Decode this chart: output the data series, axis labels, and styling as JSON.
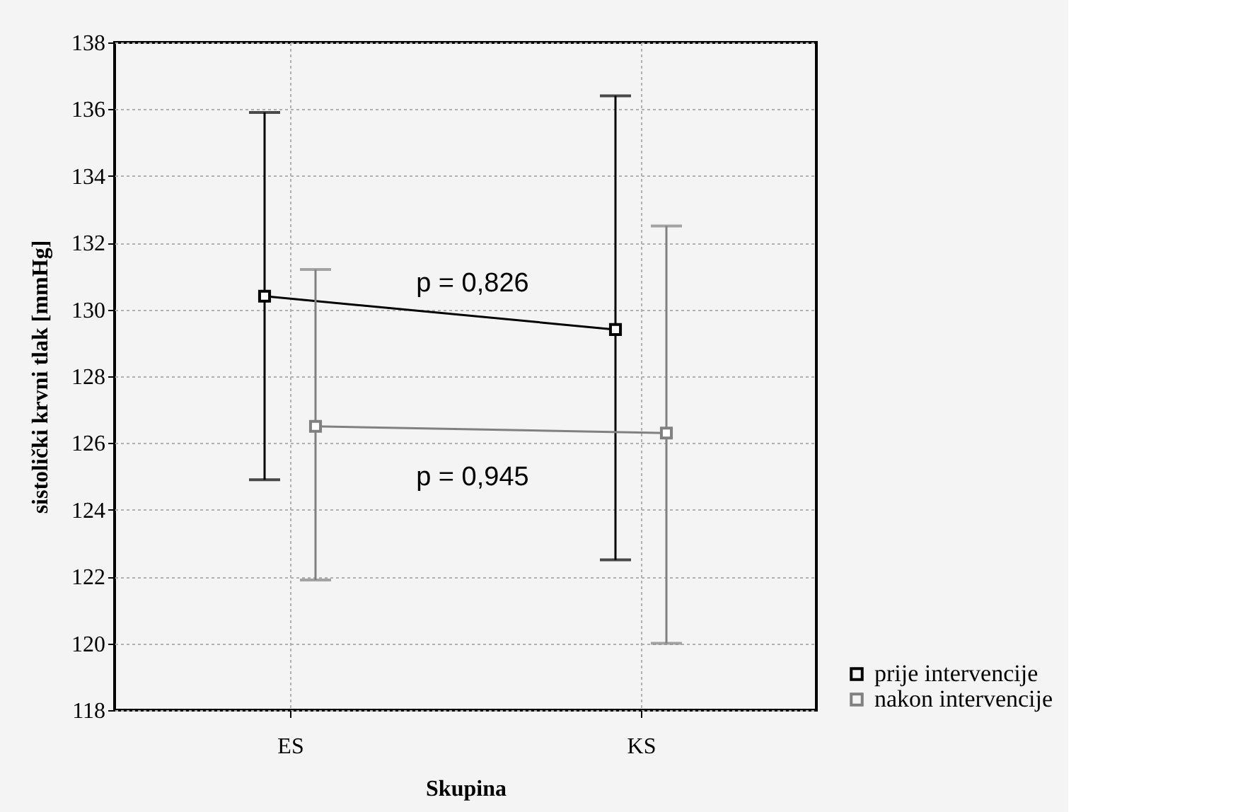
{
  "chart_data": {
    "type": "line",
    "xlabel": "Skupina",
    "ylabel": "sistolički krvni tlak [mmHg]",
    "categories": [
      "ES",
      "KS"
    ],
    "series": [
      {
        "name": "prije intervencije",
        "color": "#000000",
        "values": [
          130.4,
          129.4
        ],
        "errors": [
          [
            124.9,
            135.9
          ],
          [
            122.5,
            136.4
          ]
        ]
      },
      {
        "name": "nakon intervencije",
        "color": "#808080",
        "values": [
          126.5,
          126.3
        ],
        "errors": [
          [
            121.9,
            131.2
          ],
          [
            120.0,
            132.5
          ]
        ]
      }
    ],
    "ylim": [
      118,
      138
    ],
    "yticks": [
      118,
      120,
      122,
      124,
      126,
      128,
      130,
      132,
      134,
      136,
      138
    ],
    "grid": true,
    "marker": "square",
    "line_style": "solid",
    "legend": "bottom right",
    "annotations": [
      "p = 0,826",
      "p = 0,945"
    ]
  }
}
